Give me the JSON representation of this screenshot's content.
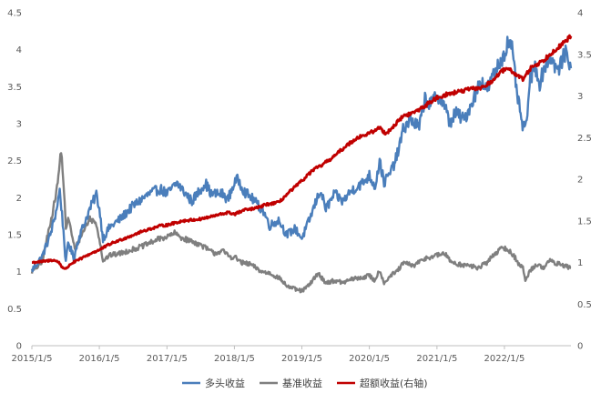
{
  "chart_data": {
    "type": "line",
    "x_ticks": [
      "2015/1/5",
      "2016/1/5",
      "2017/1/5",
      "2018/1/5",
      "2019/1/5",
      "2020/1/5",
      "2021/1/5",
      "2022/1/5"
    ],
    "y_left": {
      "ticks": [
        "0",
        "0.5",
        "1",
        "1.5",
        "2",
        "2.5",
        "3",
        "3.5",
        "4",
        "4.5"
      ],
      "ylim": [
        0,
        4.5
      ]
    },
    "y_right": {
      "ticks": [
        "0",
        "0.5",
        "1",
        "1.5",
        "2",
        "2.5",
        "3",
        "3.5",
        "4"
      ],
      "ylim": [
        0,
        4
      ]
    },
    "xlim": [
      "2015/1/5",
      "2022/12/31"
    ],
    "grid": false,
    "legend_position": "bottom",
    "series": [
      {
        "name": "多头收益",
        "axis": "left",
        "color": "#4a7ebb",
        "points": [
          [
            "2015/1/5",
            1.02
          ],
          [
            "2015/3/1",
            1.2
          ],
          [
            "2015/4/15",
            1.5
          ],
          [
            "2015/5/15",
            1.8
          ],
          [
            "2015/6/5",
            2.1
          ],
          [
            "2015/6/25",
            1.55
          ],
          [
            "2015/7/8",
            1.1
          ],
          [
            "2015/7/20",
            1.4
          ],
          [
            "2015/8/20",
            1.18
          ],
          [
            "2015/9/15",
            1.45
          ],
          [
            "2015/11/15",
            1.85
          ],
          [
            "2015/12/20",
            2.05
          ],
          [
            "2016/1/5",
            1.85
          ],
          [
            "2016/1/25",
            1.45
          ],
          [
            "2016/3/1",
            1.6
          ],
          [
            "2016/5/1",
            1.72
          ],
          [
            "2016/7/1",
            1.88
          ],
          [
            "2016/9/1",
            2.0
          ],
          [
            "2016/10/15",
            2.07
          ],
          [
            "2016/12/1",
            2.12
          ],
          [
            "2017/1/5",
            2.05
          ],
          [
            "2017/3/1",
            2.2
          ],
          [
            "2017/4/1",
            2.1
          ],
          [
            "2017/5/20",
            1.95
          ],
          [
            "2017/7/1",
            2.1
          ],
          [
            "2017/8/1",
            2.2
          ],
          [
            "2017/9/1",
            2.05
          ],
          [
            "2017/11/1",
            2.05
          ],
          [
            "2017/12/1",
            1.98
          ],
          [
            "2018/1/5",
            2.2
          ],
          [
            "2018/1/25",
            2.25
          ],
          [
            "2018/3/1",
            2.08
          ],
          [
            "2018/4/15",
            1.98
          ],
          [
            "2018/6/15",
            1.8
          ],
          [
            "2018/7/15",
            1.62
          ],
          [
            "2018/9/1",
            1.7
          ],
          [
            "2018/10/15",
            1.5
          ],
          [
            "2018/12/1",
            1.58
          ],
          [
            "2019/1/5",
            1.45
          ],
          [
            "2019/2/15",
            1.7
          ],
          [
            "2019/3/15",
            1.9
          ],
          [
            "2019/4/15",
            2.1
          ],
          [
            "2019/5/15",
            1.85
          ],
          [
            "2019/7/1",
            2.05
          ],
          [
            "2019/8/15",
            1.95
          ],
          [
            "2019/10/1",
            2.1
          ],
          [
            "2019/12/1",
            2.2
          ],
          [
            "2020/1/5",
            2.3
          ],
          [
            "2020/2/5",
            2.15
          ],
          [
            "2020/3/1",
            2.5
          ],
          [
            "2020/3/25",
            2.2
          ],
          [
            "2020/5/1",
            2.35
          ],
          [
            "2020/6/1",
            2.55
          ],
          [
            "2020/7/10",
            2.95
          ],
          [
            "2020/8/15",
            3.05
          ],
          [
            "2020/10/1",
            2.95
          ],
          [
            "2020/11/1",
            3.35
          ],
          [
            "2020/12/1",
            3.25
          ],
          [
            "2021/1/5",
            3.4
          ],
          [
            "2021/2/15",
            3.25
          ],
          [
            "2021/3/15",
            3.0
          ],
          [
            "2021/4/15",
            3.15
          ],
          [
            "2021/6/1",
            3.05
          ],
          [
            "2021/7/15",
            3.3
          ],
          [
            "2021/9/1",
            3.6
          ],
          [
            "2021/10/1",
            3.45
          ],
          [
            "2021/11/15",
            3.7
          ],
          [
            "2021/12/15",
            3.85
          ],
          [
            "2022/1/5",
            3.95
          ],
          [
            "2022/1/25",
            4.12
          ],
          [
            "2022/2/15",
            4.0
          ],
          [
            "2022/3/15",
            3.4
          ],
          [
            "2022/4/10",
            3.0
          ],
          [
            "2022/4/28",
            2.9
          ],
          [
            "2022/5/25",
            3.6
          ],
          [
            "2022/6/20",
            3.78
          ],
          [
            "2022/7/15",
            3.55
          ],
          [
            "2022/8/15",
            3.8
          ],
          [
            "2022/9/15",
            3.9
          ],
          [
            "2022/10/20",
            3.7
          ],
          [
            "2022/11/20",
            3.9
          ],
          [
            "2022/12/10",
            3.98
          ],
          [
            "2022/12/31",
            3.75
          ]
        ]
      },
      {
        "name": "基准收益",
        "axis": "left",
        "color": "#7f7f7f",
        "points": [
          [
            "2015/1/5",
            1.0
          ],
          [
            "2015/3/1",
            1.12
          ],
          [
            "2015/4/1",
            1.5
          ],
          [
            "2015/5/1",
            1.85
          ],
          [
            "2015/5/25",
            2.2
          ],
          [
            "2015/6/12",
            2.65
          ],
          [
            "2015/6/28",
            2.1
          ],
          [
            "2015/7/8",
            1.55
          ],
          [
            "2015/7/20",
            1.75
          ],
          [
            "2015/8/25",
            1.3
          ],
          [
            "2015/10/1",
            1.5
          ],
          [
            "2015/11/15",
            1.72
          ],
          [
            "2015/12/20",
            1.65
          ],
          [
            "2016/1/5",
            1.45
          ],
          [
            "2016/1/25",
            1.15
          ],
          [
            "2016/3/1",
            1.22
          ],
          [
            "2016/5/1",
            1.25
          ],
          [
            "2016/7/1",
            1.3
          ],
          [
            "2016/9/1",
            1.35
          ],
          [
            "2016/11/1",
            1.42
          ],
          [
            "2016/12/1",
            1.45
          ],
          [
            "2017/1/5",
            1.47
          ],
          [
            "2017/2/15",
            1.52
          ],
          [
            "2017/4/1",
            1.45
          ],
          [
            "2017/6/1",
            1.4
          ],
          [
            "2017/7/15",
            1.35
          ],
          [
            "2017/8/15",
            1.3
          ],
          [
            "2017/9/15",
            1.25
          ],
          [
            "2017/11/1",
            1.28
          ],
          [
            "2017/12/15",
            1.2
          ],
          [
            "2018/1/5",
            1.2
          ],
          [
            "2018/2/15",
            1.12
          ],
          [
            "2018/4/1",
            1.1
          ],
          [
            "2018/6/1",
            1.0
          ],
          [
            "2018/7/15",
            0.98
          ],
          [
            "2018/9/1",
            0.92
          ],
          [
            "2018/10/20",
            0.8
          ],
          [
            "2018/12/15",
            0.75
          ],
          [
            "2019/1/5",
            0.74
          ],
          [
            "2019/2/15",
            0.82
          ],
          [
            "2019/4/1",
            0.98
          ],
          [
            "2019/5/15",
            0.85
          ],
          [
            "2019/7/1",
            0.88
          ],
          [
            "2019/8/15",
            0.85
          ],
          [
            "2019/10/1",
            0.9
          ],
          [
            "2019/12/1",
            0.92
          ],
          [
            "2020/1/5",
            0.95
          ],
          [
            "2020/2/1",
            0.88
          ],
          [
            "2020/3/1",
            1.02
          ],
          [
            "2020/3/25",
            0.85
          ],
          [
            "2020/5/1",
            0.95
          ],
          [
            "2020/6/1",
            1.0
          ],
          [
            "2020/7/10",
            1.12
          ],
          [
            "2020/9/1",
            1.08
          ],
          [
            "2020/11/1",
            1.18
          ],
          [
            "2020/12/1",
            1.2
          ],
          [
            "2021/1/5",
            1.22
          ],
          [
            "2021/2/15",
            1.25
          ],
          [
            "2021/3/15",
            1.15
          ],
          [
            "2021/5/1",
            1.1
          ],
          [
            "2021/7/1",
            1.08
          ],
          [
            "2021/8/15",
            1.05
          ],
          [
            "2021/10/1",
            1.12
          ],
          [
            "2021/11/15",
            1.25
          ],
          [
            "2021/12/15",
            1.3
          ],
          [
            "2022/1/5",
            1.32
          ],
          [
            "2022/2/1",
            1.28
          ],
          [
            "2022/3/1",
            1.2
          ],
          [
            "2022/3/25",
            1.1
          ],
          [
            "2022/4/15",
            1.05
          ],
          [
            "2022/4/28",
            0.88
          ],
          [
            "2022/5/25",
            1.02
          ],
          [
            "2022/6/25",
            1.1
          ],
          [
            "2022/8/1",
            1.05
          ],
          [
            "2022/9/1",
            1.15
          ],
          [
            "2022/10/1",
            1.12
          ],
          [
            "2022/11/1",
            1.1
          ],
          [
            "2022/12/1",
            1.08
          ],
          [
            "2022/12/31",
            1.05
          ]
        ]
      },
      {
        "name": "超额收益(右轴)",
        "axis": "right",
        "color": "#c00000",
        "points": [
          [
            "2015/1/5",
            1.0
          ],
          [
            "2015/3/1",
            1.01
          ],
          [
            "2015/5/1",
            1.03
          ],
          [
            "2015/6/1",
            1.0
          ],
          [
            "2015/6/15",
            0.95
          ],
          [
            "2015/7/8",
            0.92
          ],
          [
            "2015/8/1",
            0.98
          ],
          [
            "2015/10/1",
            1.05
          ],
          [
            "2015/12/1",
            1.12
          ],
          [
            "2016/1/5",
            1.15
          ],
          [
            "2016/3/1",
            1.22
          ],
          [
            "2016/6/1",
            1.3
          ],
          [
            "2016/9/1",
            1.38
          ],
          [
            "2016/12/1",
            1.44
          ],
          [
            "2017/1/5",
            1.45
          ],
          [
            "2017/4/1",
            1.5
          ],
          [
            "2017/7/1",
            1.52
          ],
          [
            "2017/9/1",
            1.55
          ],
          [
            "2017/12/1",
            1.6
          ],
          [
            "2018/1/5",
            1.58
          ],
          [
            "2018/3/1",
            1.63
          ],
          [
            "2018/5/1",
            1.65
          ],
          [
            "2018/7/1",
            1.7
          ],
          [
            "2018/9/1",
            1.72
          ],
          [
            "2018/11/1",
            1.85
          ],
          [
            "2019/1/5",
            1.98
          ],
          [
            "2019/3/1",
            2.1
          ],
          [
            "2019/5/1",
            2.18
          ],
          [
            "2019/7/1",
            2.28
          ],
          [
            "2019/9/1",
            2.4
          ],
          [
            "2019/11/1",
            2.5
          ],
          [
            "2020/1/5",
            2.55
          ],
          [
            "2020/3/1",
            2.62
          ],
          [
            "2020/4/1",
            2.55
          ],
          [
            "2020/5/1",
            2.6
          ],
          [
            "2020/7/1",
            2.75
          ],
          [
            "2020/9/1",
            2.8
          ],
          [
            "2020/11/1",
            2.88
          ],
          [
            "2021/1/5",
            2.98
          ],
          [
            "2021/3/1",
            3.02
          ],
          [
            "2021/5/1",
            3.05
          ],
          [
            "2021/7/1",
            3.08
          ],
          [
            "2021/9/1",
            3.1
          ],
          [
            "2021/10/15",
            3.15
          ],
          [
            "2021/12/1",
            3.25
          ],
          [
            "2022/1/5",
            3.32
          ],
          [
            "2022/2/15",
            3.3
          ],
          [
            "2022/3/15",
            3.25
          ],
          [
            "2022/4/15",
            3.2
          ],
          [
            "2022/6/1",
            3.35
          ],
          [
            "2022/8/1",
            3.42
          ],
          [
            "2022/10/1",
            3.55
          ],
          [
            "2022/11/15",
            3.62
          ],
          [
            "2022/12/31",
            3.72
          ]
        ]
      }
    ]
  }
}
